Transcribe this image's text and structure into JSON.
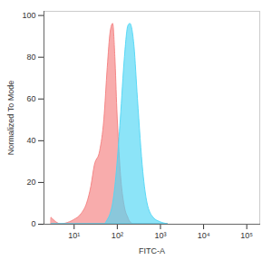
{
  "chart_data": {
    "type": "area",
    "x_label": "FITC-A",
    "y_label": "Normalized To Mode",
    "log": "x",
    "x": [
      3,
      5,
      8,
      10,
      15,
      20,
      25,
      30,
      40,
      50,
      60,
      70,
      80,
      90,
      100,
      120,
      150,
      180,
      200,
      250,
      300,
      400,
      500,
      700,
      1000,
      1500
    ],
    "series": [
      {
        "color": "#f4807f",
        "values": [
          3,
          0,
          1,
          2,
          5,
          10,
          18,
          28,
          35,
          50,
          75,
          92,
          96,
          80,
          55,
          25,
          8,
          3,
          1,
          0,
          0,
          0,
          0,
          0,
          0,
          0
        ]
      },
      {
        "color": "#4fd6f5",
        "values": [
          0,
          0,
          0,
          0,
          0,
          0,
          0,
          0,
          0,
          0,
          2,
          5,
          10,
          18,
          28,
          50,
          80,
          95,
          96,
          85,
          60,
          25,
          10,
          3,
          1,
          0
        ]
      }
    ],
    "xlim": [
      2,
      200000
    ],
    "xticks": [
      {
        "value": 10,
        "label": "10¹"
      },
      {
        "value": 100,
        "label": "10²"
      },
      {
        "value": 1000,
        "label": "10³"
      },
      {
        "value": 10000,
        "label": "10⁴"
      },
      {
        "value": 100000,
        "label": "10⁵"
      }
    ],
    "ylim": [
      0,
      102
    ],
    "yticks": [
      0,
      20,
      40,
      60,
      80,
      100
    ]
  }
}
